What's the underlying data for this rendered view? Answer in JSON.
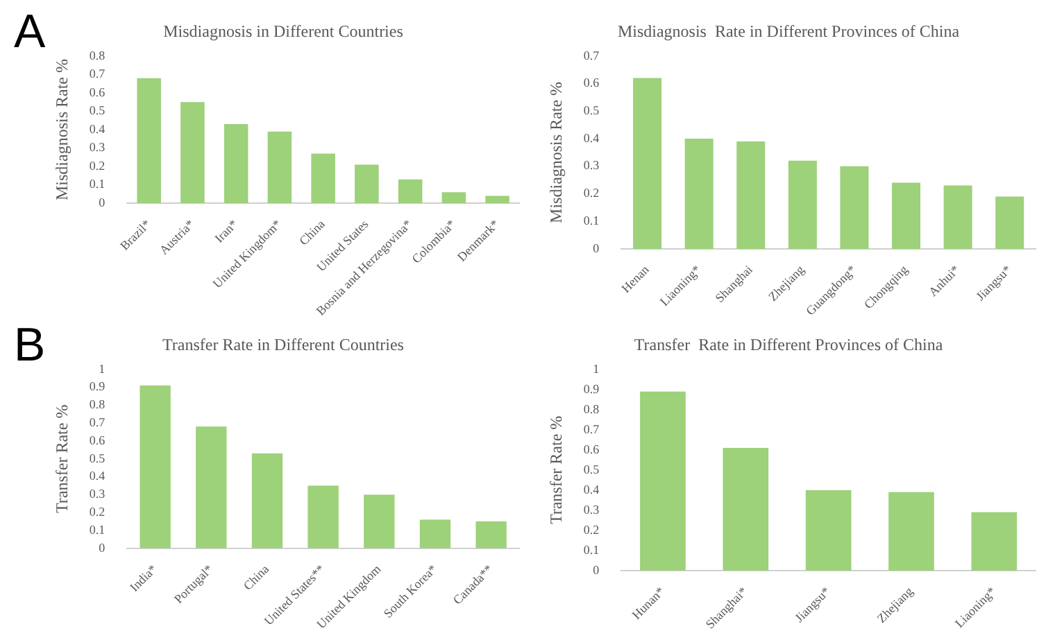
{
  "chart_data": [
    {
      "type": "bar",
      "title": "Misdiagnosis in Different Countries",
      "ylabel": "Misdiagnosis Rate %",
      "annotations": [
        "A"
      ],
      "categories": [
        "Brazil*",
        "Austria*",
        "Iran*",
        "United Kingdom*",
        "China",
        "United States",
        "Bosnia and Herzegovina*",
        "Colombia*",
        "Denmark*"
      ],
      "values": [
        0.68,
        0.55,
        0.43,
        0.39,
        0.27,
        0.21,
        0.13,
        0.06,
        0.04
      ],
      "color": "#9dd17a",
      "ylim": [
        0,
        0.8
      ],
      "yticks": [
        0,
        0.1,
        0.2,
        0.3,
        0.4,
        0.5,
        0.6,
        0.7,
        0.8
      ],
      "grid": false,
      "legend": false
    },
    {
      "type": "bar",
      "title": "Misdiagnosis  Rate in Different Provinces of China",
      "ylabel": "Misdiagnosis Rate %",
      "categories": [
        "Henan",
        "Liaoning*",
        "Shanghai",
        "Zhejiang",
        "Guangdong*",
        "Chongqing",
        "Anhui*",
        "Jiangsu*"
      ],
      "values": [
        0.62,
        0.4,
        0.39,
        0.32,
        0.3,
        0.24,
        0.23,
        0.19
      ],
      "color": "#9dd17a",
      "ylim": [
        0,
        0.7
      ],
      "yticks": [
        0,
        0.1,
        0.2,
        0.3,
        0.4,
        0.5,
        0.6,
        0.7
      ],
      "grid": false,
      "legend": false
    },
    {
      "type": "bar",
      "title": "Transfer Rate in Different Countries",
      "ylabel": "Transfer Rate %",
      "annotations": [
        "B"
      ],
      "categories": [
        "India*",
        "Portugal*",
        "China",
        "United States**",
        "United Kingdom",
        "South Korea*",
        "Canada**"
      ],
      "values": [
        0.91,
        0.68,
        0.53,
        0.35,
        0.3,
        0.16,
        0.15
      ],
      "color": "#9dd17a",
      "ylim": [
        0,
        1
      ],
      "yticks": [
        0,
        0.1,
        0.2,
        0.3,
        0.4,
        0.5,
        0.6,
        0.7,
        0.8,
        0.9,
        1
      ],
      "grid": false,
      "legend": false
    },
    {
      "type": "bar",
      "title": "Transfer  Rate in Different Provinces of China",
      "ylabel": "Transfer Rate %",
      "categories": [
        "Hunan*",
        "Shanghai*",
        "Jiangsu*",
        "Zhejiang",
        "Liaoning*"
      ],
      "values": [
        0.89,
        0.61,
        0.4,
        0.39,
        0.29
      ],
      "color": "#9dd17a",
      "ylim": [
        0,
        1
      ],
      "yticks": [
        0,
        0.1,
        0.2,
        0.3,
        0.4,
        0.5,
        0.6,
        0.7,
        0.8,
        0.9,
        1
      ],
      "grid": false,
      "legend": false
    }
  ]
}
